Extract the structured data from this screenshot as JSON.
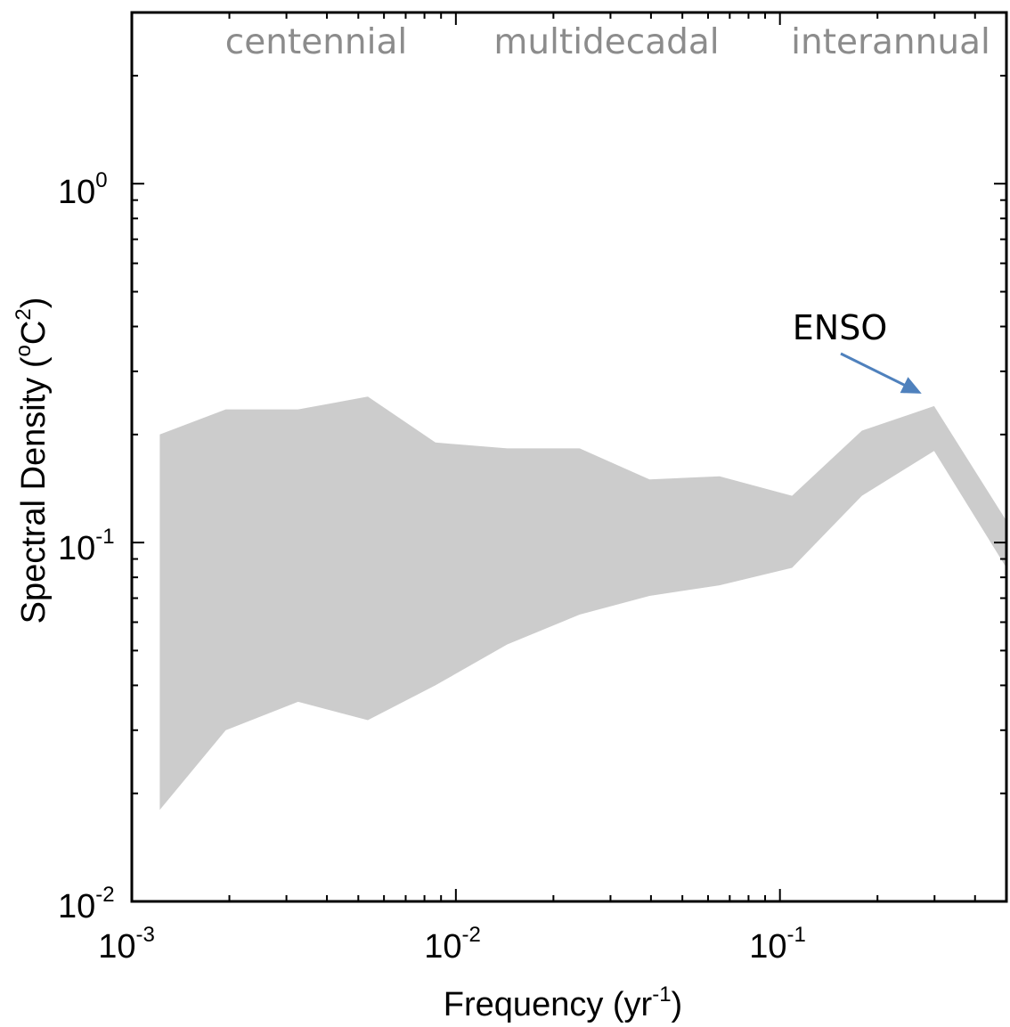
{
  "chart_data": {
    "type": "area",
    "xscale": "log",
    "yscale": "log",
    "xlim": [
      0.001,
      0.5
    ],
    "ylim": [
      0.01,
      3.0
    ],
    "xlabel": {
      "base": "Frequency (yr",
      "sup": "-1",
      "tail": ")"
    },
    "ylabel": {
      "base": "Spectral Density (",
      "sup": "o",
      "mid": "C",
      "sup2": "2",
      "tail": ")"
    },
    "xticks": [
      {
        "value": 0.001,
        "base": "10",
        "exp": "-3"
      },
      {
        "value": 0.01,
        "base": "10",
        "exp": "-2"
      },
      {
        "value": 0.1,
        "base": "10",
        "exp": "-1"
      }
    ],
    "yticks": [
      {
        "value": 0.01,
        "base": "10",
        "exp": "-2"
      },
      {
        "value": 0.1,
        "base": "10",
        "exp": "-1"
      },
      {
        "value": 1,
        "base": "10",
        "exp": "0"
      }
    ],
    "band": {
      "x": [
        0.00122,
        0.00195,
        0.00326,
        0.00535,
        0.00865,
        0.0144,
        0.0241,
        0.0396,
        0.0651,
        0.109,
        0.179,
        0.299,
        0.5
      ],
      "upper": [
        0.2,
        0.235,
        0.235,
        0.255,
        0.19,
        0.183,
        0.183,
        0.15,
        0.153,
        0.135,
        0.205,
        0.24,
        0.115
      ],
      "lower": [
        0.018,
        0.03,
        0.036,
        0.032,
        0.04,
        0.052,
        0.063,
        0.071,
        0.076,
        0.085,
        0.135,
        0.18,
        0.085
      ],
      "color": "#cccccc"
    },
    "band_labels": [
      "centennial",
      "multidecadal",
      "interannual"
    ],
    "annotation": {
      "text": "ENSO",
      "target_x": 0.299,
      "target_y": 0.24,
      "arrow_color": "#4f81bd"
    },
    "grid": false
  }
}
